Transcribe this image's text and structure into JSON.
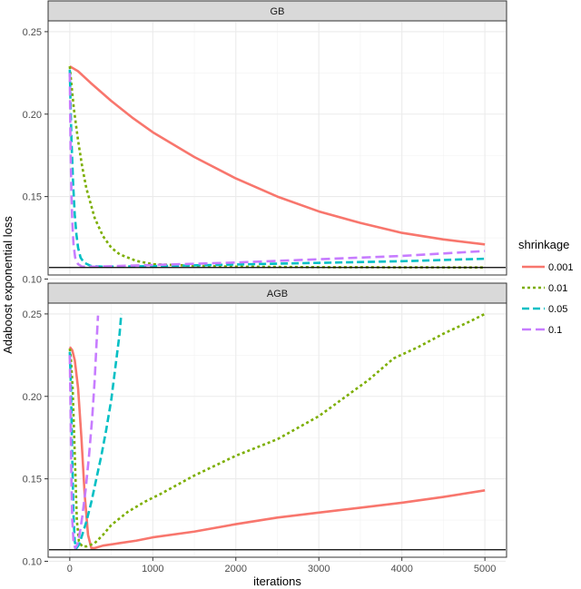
{
  "chart_data": {
    "type": "line",
    "xlabel": "iterations",
    "ylabel": "Adaboost exponential loss",
    "xlim": [
      -250,
      5250
    ],
    "ylim": [
      0.103,
      0.256
    ],
    "x_ticks": [
      0,
      1000,
      2000,
      3000,
      4000,
      5000
    ],
    "x_tick_labels": [
      "0",
      "1000",
      "2000",
      "3000",
      "4000",
      "5000"
    ],
    "y_ticks": [
      0.1,
      0.15,
      0.2,
      0.25
    ],
    "y_tick_labels": [
      "0.10",
      "0.15",
      "0.20",
      "0.25"
    ],
    "grid": true,
    "reference_line": 0.107,
    "legend": {
      "title": "shrinkage",
      "position": "right",
      "entries": [
        "0.001",
        "0.01",
        "0.05",
        "0.1"
      ]
    },
    "colors": {
      "0.001": "#F8766D",
      "0.01": "#7CAE00",
      "0.05": "#00BFC4",
      "0.1": "#C77CFF"
    },
    "dash": {
      "0.001": "",
      "0.01": "3,3",
      "0.05": "8,4",
      "0.1": "10,5"
    },
    "panels": [
      {
        "title": "GB",
        "series": [
          {
            "name": "0.001",
            "points": [
              [
                0,
                0.229
              ],
              [
                100,
                0.226
              ],
              [
                250,
                0.219
              ],
              [
                500,
                0.208
              ],
              [
                750,
                0.198
              ],
              [
                1000,
                0.189
              ],
              [
                1500,
                0.174
              ],
              [
                2000,
                0.161
              ],
              [
                2500,
                0.15
              ],
              [
                3000,
                0.141
              ],
              [
                3500,
                0.134
              ],
              [
                4000,
                0.128
              ],
              [
                4500,
                0.124
              ],
              [
                5000,
                0.121
              ]
            ]
          },
          {
            "name": "0.01",
            "points": [
              [
                0,
                0.229
              ],
              [
                20,
                0.218
              ],
              [
                50,
                0.203
              ],
              [
                100,
                0.184
              ],
              [
                150,
                0.168
              ],
              [
                200,
                0.155
              ],
              [
                300,
                0.137
              ],
              [
                400,
                0.126
              ],
              [
                500,
                0.119
              ],
              [
                600,
                0.115
              ],
              [
                800,
                0.111
              ],
              [
                1000,
                0.109
              ],
              [
                1500,
                0.108
              ],
              [
                2000,
                0.1075
              ],
              [
                3000,
                0.1072
              ],
              [
                4000,
                0.1071
              ],
              [
                5000,
                0.107
              ]
            ]
          },
          {
            "name": "0.05",
            "points": [
              [
                0,
                0.227
              ],
              [
                10,
                0.205
              ],
              [
                20,
                0.185
              ],
              [
                40,
                0.158
              ],
              [
                60,
                0.139
              ],
              [
                80,
                0.127
              ],
              [
                100,
                0.119
              ],
              [
                130,
                0.113
              ],
              [
                170,
                0.11
              ],
              [
                250,
                0.108
              ],
              [
                400,
                0.1075
              ],
              [
                1000,
                0.1078
              ],
              [
                2000,
                0.1088
              ],
              [
                3000,
                0.1098
              ],
              [
                4000,
                0.1108
              ],
              [
                5000,
                0.1123
              ]
            ]
          },
          {
            "name": "0.1",
            "points": [
              [
                0,
                0.225
              ],
              [
                5,
                0.2
              ],
              [
                10,
                0.178
              ],
              [
                20,
                0.152
              ],
              [
                30,
                0.135
              ],
              [
                45,
                0.121
              ],
              [
                65,
                0.113
              ],
              [
                100,
                0.109
              ],
              [
                150,
                0.1075
              ],
              [
                300,
                0.1075
              ],
              [
                1000,
                0.1085
              ],
              [
                2000,
                0.11
              ],
              [
                3000,
                0.112
              ],
              [
                4000,
                0.114
              ],
              [
                5000,
                0.117
              ]
            ]
          }
        ]
      },
      {
        "title": "AGB",
        "series": [
          {
            "name": "0.001",
            "points": [
              [
                0,
                0.23
              ],
              [
                30,
                0.228
              ],
              [
                60,
                0.222
              ],
              [
                100,
                0.205
              ],
              [
                140,
                0.175
              ],
              [
                180,
                0.14
              ],
              [
                220,
                0.116
              ],
              [
                260,
                0.108
              ],
              [
                300,
                0.108
              ],
              [
                400,
                0.1095
              ],
              [
                600,
                0.111
              ],
              [
                800,
                0.1125
              ],
              [
                1000,
                0.1145
              ],
              [
                1500,
                0.118
              ],
              [
                2000,
                0.1225
              ],
              [
                2500,
                0.1265
              ],
              [
                3000,
                0.1295
              ],
              [
                3500,
                0.1325
              ],
              [
                4000,
                0.1355
              ],
              [
                4500,
                0.139
              ],
              [
                5000,
                0.143
              ]
            ]
          },
          {
            "name": "0.01",
            "points": [
              [
                0,
                0.229
              ],
              [
                15,
                0.222
              ],
              [
                35,
                0.205
              ],
              [
                60,
                0.165
              ],
              [
                85,
                0.125
              ],
              [
                110,
                0.112
              ],
              [
                150,
                0.109
              ],
              [
                200,
                0.109
              ],
              [
                300,
                0.111
              ],
              [
                400,
                0.116
              ],
              [
                500,
                0.122
              ],
              [
                700,
                0.13
              ],
              [
                900,
                0.136
              ],
              [
                1100,
                0.141
              ],
              [
                1500,
                0.152
              ],
              [
                2000,
                0.164
              ],
              [
                2500,
                0.174
              ],
              [
                3000,
                0.188
              ],
              [
                3300,
                0.199
              ],
              [
                3600,
                0.21
              ],
              [
                3900,
                0.223
              ],
              [
                4200,
                0.23
              ],
              [
                4500,
                0.238
              ],
              [
                4800,
                0.245
              ],
              [
                5000,
                0.25
              ]
            ]
          },
          {
            "name": "0.05",
            "points": [
              [
                0,
                0.227
              ],
              [
                15,
                0.205
              ],
              [
                30,
                0.162
              ],
              [
                45,
                0.128
              ],
              [
                60,
                0.112
              ],
              [
                80,
                0.108
              ],
              [
                110,
                0.11
              ],
              [
                150,
                0.116
              ],
              [
                200,
                0.124
              ],
              [
                260,
                0.136
              ],
              [
                320,
                0.15
              ],
              [
                380,
                0.164
              ],
              [
                440,
                0.18
              ],
              [
                500,
                0.198
              ],
              [
                550,
                0.218
              ],
              [
                600,
                0.238
              ],
              [
                620,
                0.25
              ]
            ]
          },
          {
            "name": "0.1",
            "points": [
              [
                0,
                0.225
              ],
              [
                10,
                0.19
              ],
              [
                20,
                0.15
              ],
              [
                30,
                0.125
              ],
              [
                45,
                0.112
              ],
              [
                65,
                0.108
              ],
              [
                90,
                0.11
              ],
              [
                120,
                0.117
              ],
              [
                150,
                0.127
              ],
              [
                190,
                0.143
              ],
              [
                230,
                0.163
              ],
              [
                270,
                0.187
              ],
              [
                300,
                0.21
              ],
              [
                320,
                0.23
              ],
              [
                340,
                0.249
              ]
            ]
          }
        ]
      }
    ]
  }
}
